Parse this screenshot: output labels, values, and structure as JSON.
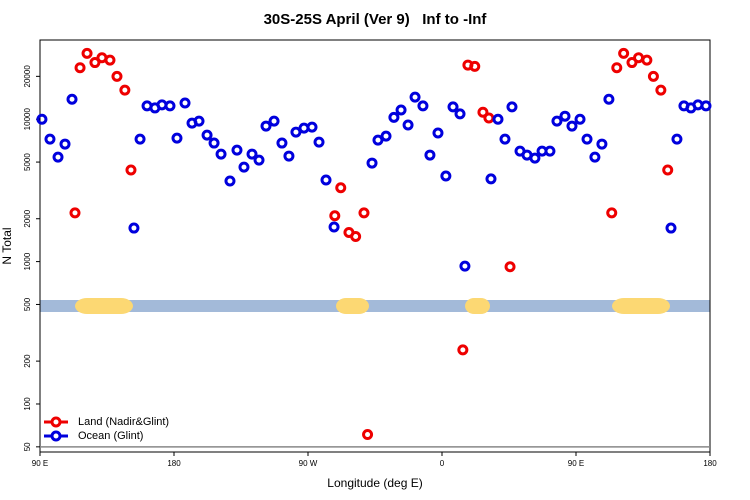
{
  "chart_data": {
    "type": "scatter",
    "title": "30S-25S April (Ver 9)   Inf to -Inf",
    "x_label": "Longitude (deg E)",
    "y_label": "N Total",
    "log_y": true,
    "legend": "bottom-left",
    "xlim": [
      90,
      540
    ],
    "ylim": [
      46,
      36000
    ],
    "xticks": [
      {
        "value": 90,
        "label": "90 E"
      },
      180,
      {
        "value": 270,
        "label": "90 W"
      },
      {
        "value": 360,
        "label": "0"
      },
      {
        "value": 450,
        "label": "90 E"
      },
      {
        "value": 540,
        "label": "180"
      }
    ],
    "yticks": [
      50,
      100,
      200,
      500,
      1000,
      2000,
      5000,
      10000,
      20000
    ],
    "series": [
      {
        "name": "Land (Nadir&Glint)",
        "color": "#ee0000",
        "x": [
          113.5,
          116.9,
          121.6,
          126.9,
          131.6,
          137,
          141.7,
          147,
          151.1,
          288,
          292,
          297.5,
          302,
          307.6,
          310,
          374,
          377.4,
          382,
          387.5,
          391.5,
          405.7,
          474,
          477.4,
          482,
          487.6,
          492,
          497.6,
          502,
          507,
          511.6
        ],
        "values": [
          2200,
          23000,
          29000,
          25000,
          27000,
          26000,
          20000,
          16000,
          4400,
          2100,
          3300,
          1600,
          1500,
          2200,
          61,
          240,
          24000,
          23500,
          11200,
          10200,
          920,
          2200,
          23000,
          29000,
          25000,
          27000,
          26000,
          20000,
          16000,
          4400
        ]
      },
      {
        "name": "Ocean (Glint)",
        "color": "#0000dd",
        "x": [
          91.3,
          96.7,
          102.1,
          106.8,
          111.5,
          153.1,
          157.2,
          161.9,
          167.2,
          171.9,
          177.3,
          182,
          187.4,
          192.1,
          196.8,
          202.2,
          206.9,
          211.6,
          217.6,
          222.3,
          227,
          232.4,
          237.1,
          241.8,
          247.2,
          252.5,
          257.2,
          261.9,
          267.3,
          272.7,
          277.4,
          282.1,
          287.5,
          313,
          317,
          322.4,
          327.7,
          332.5,
          337.2,
          341.9,
          347.2,
          351.9,
          357.3,
          362.6,
          367.4,
          372.1,
          375.4,
          392.9,
          397.6,
          402.3,
          407,
          412.4,
          417.1,
          422.4,
          427.2,
          432.5,
          437.2,
          442.6,
          447.3,
          452.7,
          457.4,
          462.7,
          467.4,
          472.1,
          513.8,
          517.8,
          522.5,
          527.2,
          531.9,
          537.3
        ],
        "values": [
          10000,
          7250,
          5420,
          6690,
          13800,
          1720,
          7250,
          12400,
          12000,
          12600,
          12400,
          7370,
          13000,
          9390,
          9700,
          7730,
          6800,
          5690,
          3680,
          6070,
          4610,
          5690,
          5160,
          8950,
          9700,
          6800,
          5510,
          8120,
          8660,
          8800,
          6900,
          3740,
          1750,
          4920,
          7130,
          7610,
          10300,
          11600,
          9100,
          14300,
          12400,
          5600,
          8000,
          3990,
          12200,
          10900,
          930,
          3810,
          10000,
          7250,
          12200,
          5970,
          5600,
          5330,
          5970,
          5970,
          9700,
          10500,
          8950,
          10000,
          7250,
          5420,
          6690,
          13800,
          1720,
          7250,
          12400,
          12000,
          12600,
          12400
        ]
      }
    ]
  }
}
